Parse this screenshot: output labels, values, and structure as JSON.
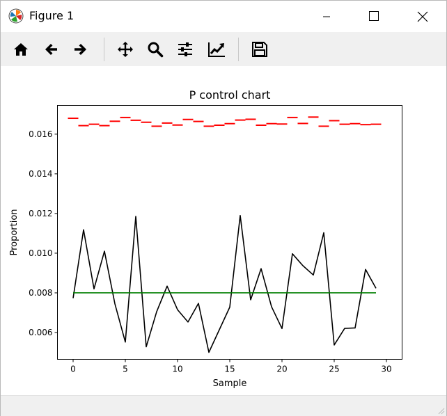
{
  "window": {
    "title": "Figure 1"
  },
  "toolbar": {
    "buttons": [
      {
        "name": "home-icon",
        "tooltip": "Home"
      },
      {
        "name": "back-arrow-icon",
        "tooltip": "Back"
      },
      {
        "name": "forward-arrow-icon",
        "tooltip": "Forward"
      },
      {
        "name": "pan-icon",
        "tooltip": "Pan"
      },
      {
        "name": "zoom-icon",
        "tooltip": "Zoom"
      },
      {
        "name": "subplots-icon",
        "tooltip": "Subplots"
      },
      {
        "name": "customize-icon",
        "tooltip": "Customize"
      },
      {
        "name": "save-icon",
        "tooltip": "Save"
      }
    ]
  },
  "colors": {
    "proportion_line": "#000000",
    "center_line": "#007f00",
    "upper_limit": "#ff0000"
  },
  "chart_data": {
    "type": "line",
    "title": "P control chart",
    "xlabel": "Sample",
    "ylabel": "Proportion",
    "xlim": [
      -1.5,
      31.5
    ],
    "ylim": [
      0.00465,
      0.01745
    ],
    "xticks": [
      0,
      5,
      10,
      15,
      20,
      25,
      30
    ],
    "xtick_labels": [
      "0",
      "5",
      "10",
      "15",
      "20",
      "25",
      "30"
    ],
    "yticks": [
      0.006,
      0.008,
      0.01,
      0.012,
      0.014,
      0.016
    ],
    "ytick_labels": [
      "0.006",
      "0.008",
      "0.010",
      "0.012",
      "0.014",
      "0.016"
    ],
    "grid": false,
    "x": [
      0,
      1,
      2,
      3,
      4,
      5,
      6,
      7,
      8,
      9,
      10,
      11,
      12,
      13,
      14,
      15,
      16,
      17,
      18,
      19,
      20,
      21,
      22,
      23,
      24,
      25,
      26,
      27,
      28,
      29
    ],
    "series": [
      {
        "style": "line",
        "values": [
          0.00773,
          0.01118,
          0.0082,
          0.0101,
          0.00745,
          0.00552,
          0.01185,
          0.00528,
          0.00705,
          0.00834,
          0.00715,
          0.00653,
          0.00747,
          0.005,
          0.00614,
          0.00728,
          0.0119,
          0.00765,
          0.00922,
          0.0073,
          0.0062,
          0.00997,
          0.00937,
          0.0089,
          0.01103,
          0.00537,
          0.00621,
          0.00623,
          0.00918,
          0.00823
        ]
      },
      {
        "style": "line",
        "values": [
          0.008,
          0.008,
          0.008,
          0.008,
          0.008,
          0.008,
          0.008,
          0.008,
          0.008,
          0.008,
          0.008,
          0.008,
          0.008,
          0.008,
          0.008,
          0.008,
          0.008,
          0.008,
          0.008,
          0.008,
          0.008,
          0.008,
          0.008,
          0.008,
          0.008,
          0.008,
          0.008,
          0.008,
          0.008,
          0.008
        ]
      },
      {
        "style": "step-markers",
        "values": [
          0.0168,
          0.01643,
          0.0165,
          0.01643,
          0.01665,
          0.01684,
          0.0167,
          0.0166,
          0.0164,
          0.01656,
          0.01646,
          0.01674,
          0.01664,
          0.0164,
          0.01645,
          0.01653,
          0.01671,
          0.01675,
          0.01645,
          0.01653,
          0.01651,
          0.01684,
          0.01654,
          0.01686,
          0.0164,
          0.01668,
          0.0165,
          0.01653,
          0.01648,
          0.0165
        ]
      }
    ]
  }
}
